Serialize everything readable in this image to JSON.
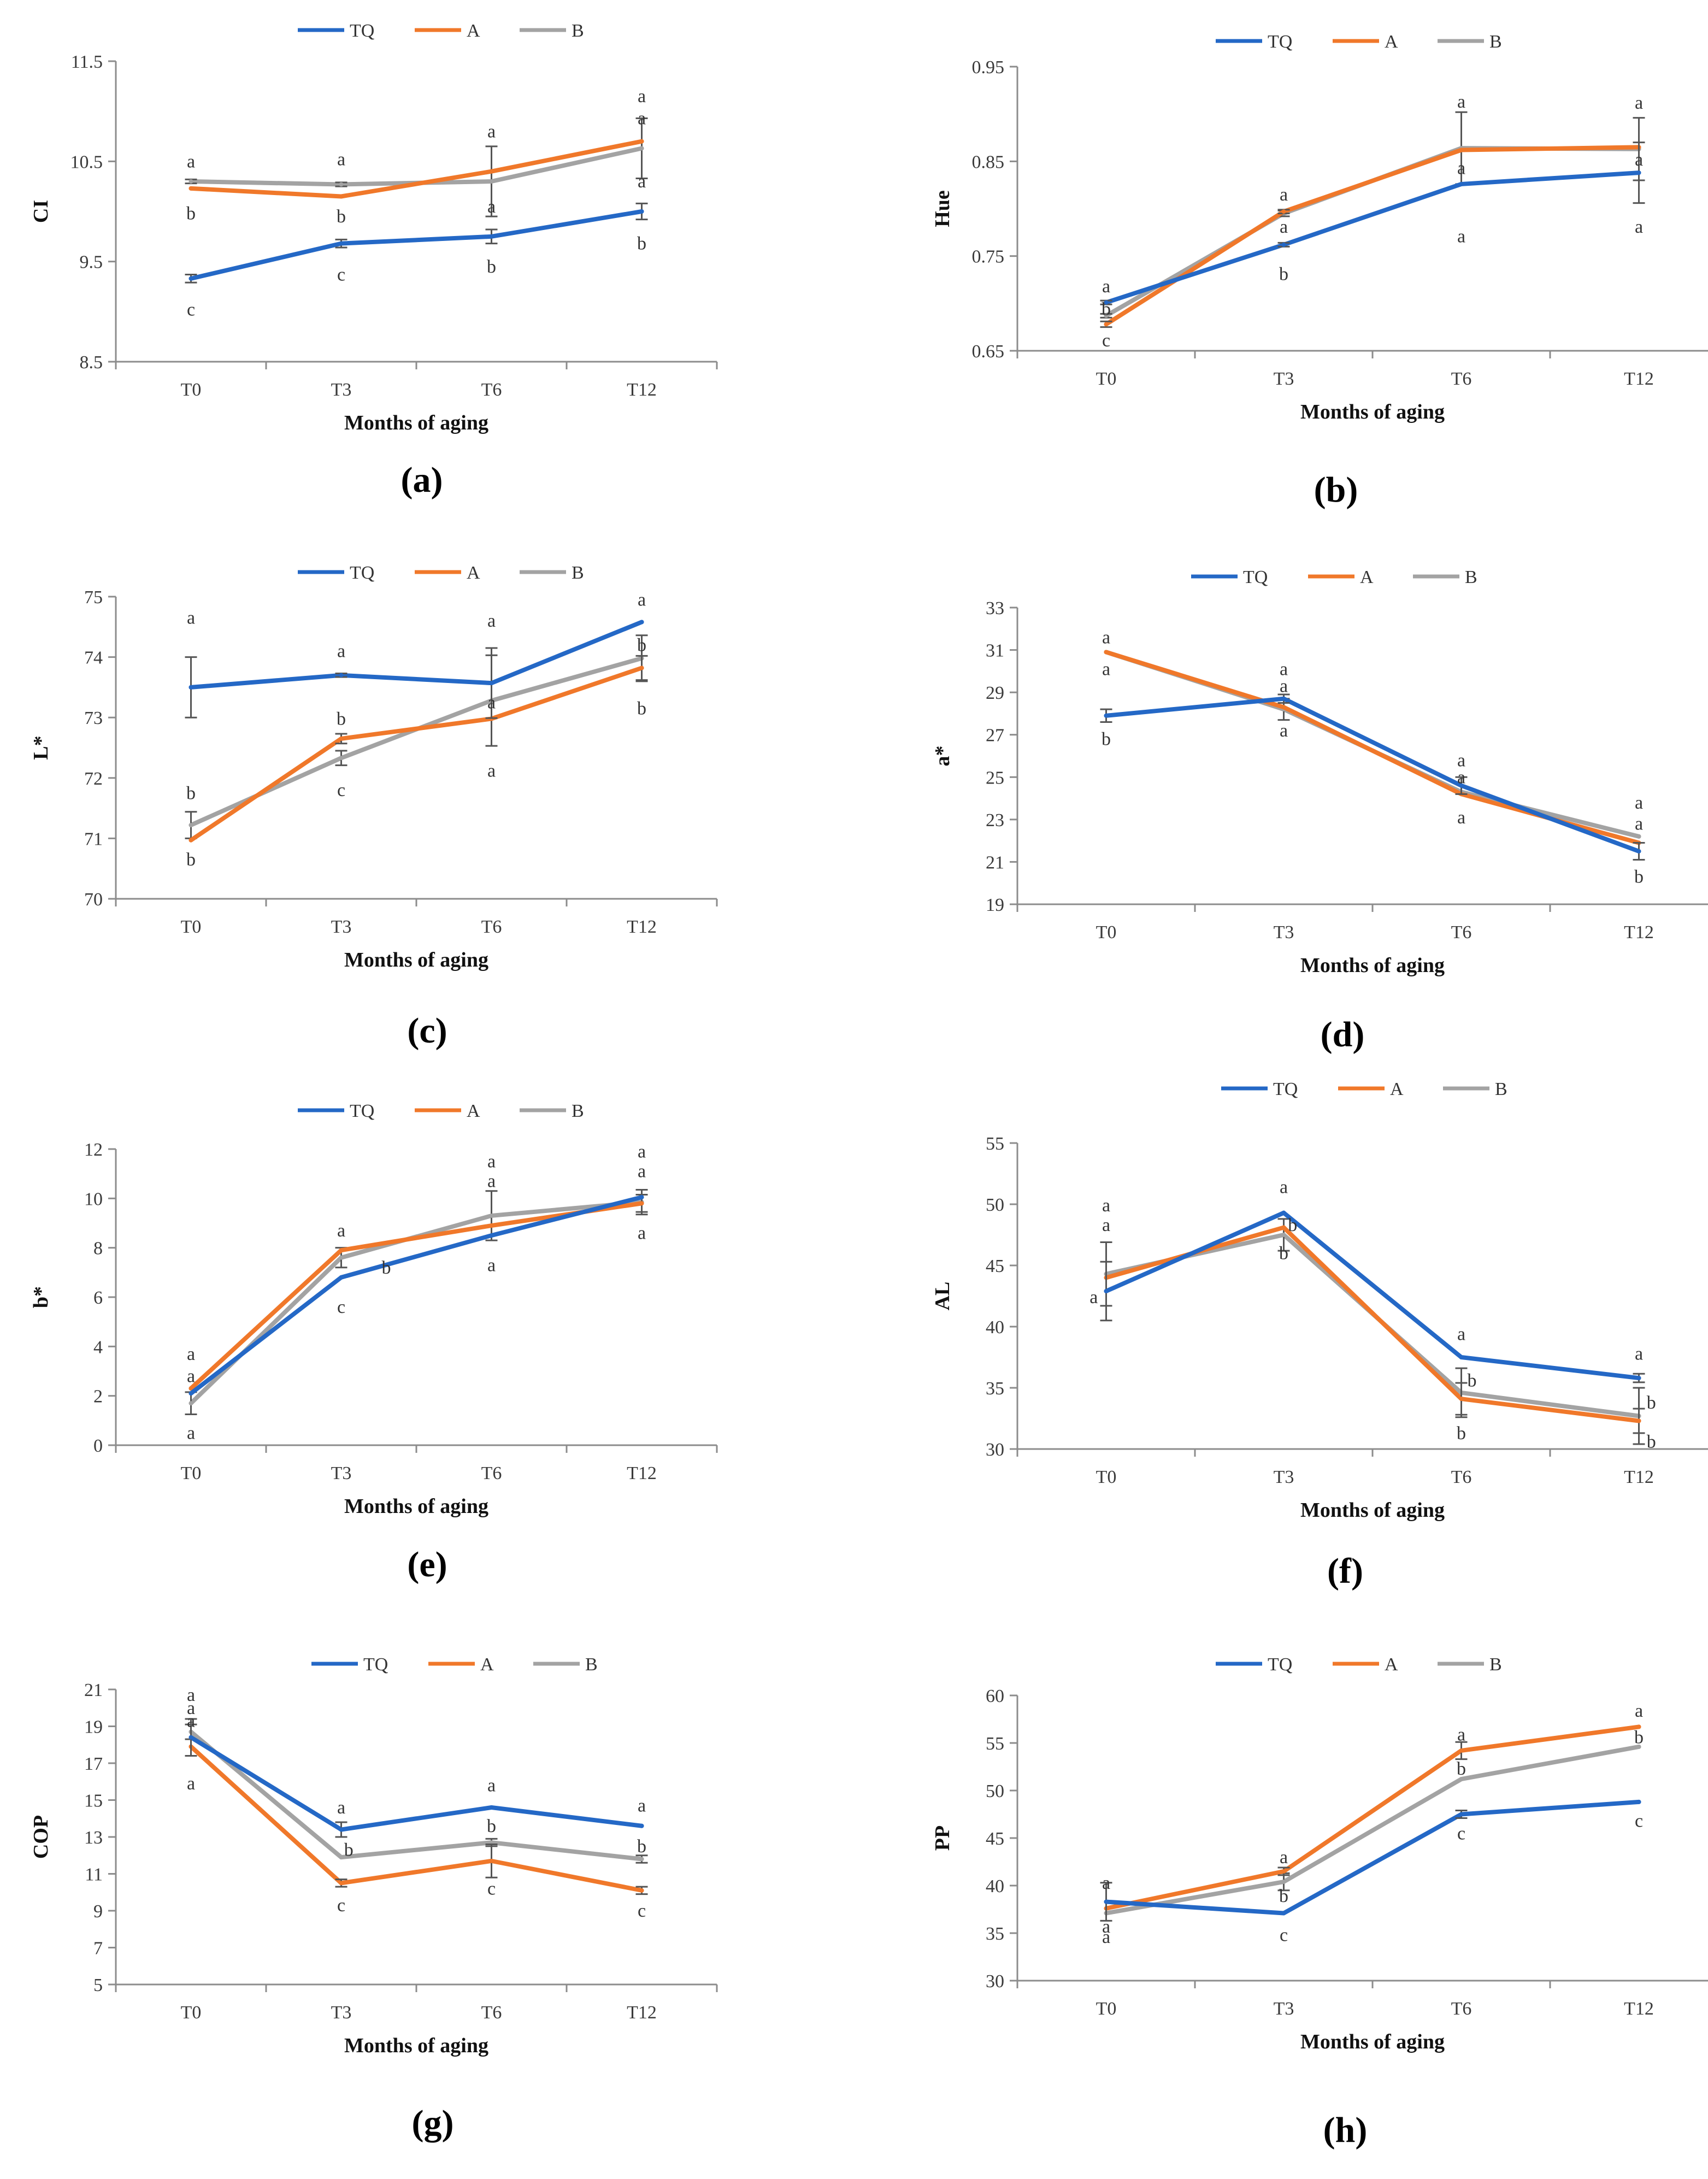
{
  "colors": {
    "TQ": "#2468c6",
    "A": "#f0782a",
    "B": "#a3a3a3",
    "axis": "#8c8c8c"
  },
  "legend": [
    "TQ",
    "A",
    "B"
  ],
  "chart_data": [
    {
      "id": "a",
      "panel_label": "(a)",
      "type": "line",
      "title": "",
      "ylabel": "CI",
      "xlabel": "Months of aging",
      "categories": [
        "T0",
        "T3",
        "T6",
        "T12"
      ],
      "ylim": [
        8.5,
        11.5
      ],
      "yticks": [
        8.5,
        9.5,
        10.5,
        11.5
      ],
      "ytick_labels": [
        "8.5",
        "9.5",
        "10.5",
        "11.5"
      ],
      "series": [
        {
          "name": "TQ",
          "values": [
            9.33,
            9.68,
            9.75,
            10.0
          ],
          "errors": [
            0.04,
            0.04,
            0.07,
            0.08
          ]
        },
        {
          "name": "A",
          "values": [
            10.23,
            10.15,
            10.4,
            10.7
          ],
          "errors": [
            0,
            0,
            0,
            0
          ]
        },
        {
          "name": "B",
          "values": [
            10.3,
            10.27,
            10.3,
            10.63
          ],
          "errors": [
            0.02,
            0.02,
            0.35,
            0.3
          ]
        }
      ],
      "annotations": [
        {
          "cat": 0,
          "value": 10.5,
          "text": "a"
        },
        {
          "cat": 0,
          "value": 9.98,
          "text": "b"
        },
        {
          "cat": 0,
          "value": 9.02,
          "text": "c"
        },
        {
          "cat": 1,
          "value": 10.52,
          "text": "a"
        },
        {
          "cat": 1,
          "value": 9.95,
          "text": "b"
        },
        {
          "cat": 1,
          "value": 9.37,
          "text": "c"
        },
        {
          "cat": 2,
          "value": 10.8,
          "text": "a"
        },
        {
          "cat": 2,
          "value": 10.05,
          "text": "a"
        },
        {
          "cat": 2,
          "value": 9.45,
          "text": "b"
        },
        {
          "cat": 3,
          "value": 11.15,
          "text": "a"
        },
        {
          "cat": 3,
          "value": 10.93,
          "text": "a"
        },
        {
          "cat": 3,
          "value": 10.3,
          "text": "a"
        },
        {
          "cat": 3,
          "value": 9.68,
          "text": "b"
        }
      ]
    },
    {
      "id": "b",
      "panel_label": "(b)",
      "type": "line",
      "title": "",
      "ylabel": "Hue",
      "xlabel": "Months of aging",
      "categories": [
        "T0",
        "T3",
        "T6",
        "T12"
      ],
      "ylim": [
        0.65,
        0.95
      ],
      "yticks": [
        0.65,
        0.75,
        0.85,
        0.95
      ],
      "ytick_labels": [
        "0.65",
        "0.75",
        "0.85",
        "0.95"
      ],
      "series": [
        {
          "name": "TQ",
          "values": [
            0.701,
            0.762,
            0.826,
            0.838
          ],
          "errors": [
            0.002,
            0.002,
            0,
            0.032
          ]
        },
        {
          "name": "A",
          "values": [
            0.678,
            0.797,
            0.862,
            0.865
          ],
          "errors": [
            0.003,
            0.002,
            0,
            0
          ]
        },
        {
          "name": "B",
          "values": [
            0.687,
            0.795,
            0.864,
            0.863
          ],
          "errors": [
            0.002,
            0.003,
            0.038,
            0.033
          ]
        }
      ],
      "annotations": [
        {
          "cat": 0,
          "value": 0.718,
          "text": "a"
        },
        {
          "cat": 0,
          "value": 0.694,
          "text": "b"
        },
        {
          "cat": 0,
          "value": 0.661,
          "text": "c"
        },
        {
          "cat": 1,
          "value": 0.815,
          "text": "a"
        },
        {
          "cat": 1,
          "value": 0.781,
          "text": "a"
        },
        {
          "cat": 1,
          "value": 0.731,
          "text": "b"
        },
        {
          "cat": 2,
          "value": 0.913,
          "text": "a"
        },
        {
          "cat": 2,
          "value": 0.843,
          "text": "a"
        },
        {
          "cat": 2,
          "value": 0.771,
          "text": "a"
        },
        {
          "cat": 3,
          "value": 0.912,
          "text": "a"
        },
        {
          "cat": 3,
          "value": 0.852,
          "text": "a"
        },
        {
          "cat": 3,
          "value": 0.781,
          "text": "a"
        }
      ]
    },
    {
      "id": "c",
      "panel_label": "(c)",
      "type": "line",
      "title": "",
      "ylabel": "L*",
      "xlabel": "Months of aging",
      "categories": [
        "T0",
        "T3",
        "T6",
        "T12"
      ],
      "ylim": [
        70,
        75
      ],
      "yticks": [
        70,
        71,
        72,
        73,
        74,
        75
      ],
      "ytick_labels": [
        "70",
        "71",
        "72",
        "73",
        "74",
        "75"
      ],
      "series": [
        {
          "name": "TQ",
          "values": [
            73.5,
            73.7,
            73.57,
            74.58
          ],
          "errors": [
            0.5,
            0.03,
            0.58,
            0
          ]
        },
        {
          "name": "A",
          "values": [
            70.97,
            72.65,
            72.98,
            73.82
          ],
          "errors": [
            0,
            0.08,
            0,
            0.2
          ]
        },
        {
          "name": "B",
          "values": [
            71.22,
            72.33,
            73.28,
            73.98
          ],
          "errors": [
            0.22,
            0.12,
            0.75,
            0.38
          ]
        }
      ],
      "annotations": [
        {
          "cat": 0,
          "value": 74.65,
          "text": "a"
        },
        {
          "cat": 0,
          "value": 71.75,
          "text": "b"
        },
        {
          "cat": 0,
          "value": 70.65,
          "text": "b"
        },
        {
          "cat": 1,
          "value": 74.1,
          "text": "a"
        },
        {
          "cat": 1,
          "value": 72.98,
          "text": "b"
        },
        {
          "cat": 1,
          "value": 71.8,
          "text": "c"
        },
        {
          "cat": 2,
          "value": 74.6,
          "text": "a"
        },
        {
          "cat": 2,
          "value": 73.25,
          "text": "a"
        },
        {
          "cat": 2,
          "value": 72.12,
          "text": "a"
        },
        {
          "cat": 3,
          "value": 74.95,
          "text": "a"
        },
        {
          "cat": 3,
          "value": 74.2,
          "text": "b"
        },
        {
          "cat": 3,
          "value": 73.15,
          "text": "b"
        }
      ]
    },
    {
      "id": "d",
      "panel_label": "(d)",
      "type": "line",
      "title": "",
      "ylabel": "a*",
      "xlabel": "Months of aging",
      "categories": [
        "T0",
        "T3",
        "T6",
        "T12"
      ],
      "ylim": [
        19,
        33
      ],
      "yticks": [
        19,
        21,
        23,
        25,
        27,
        29,
        31,
        33
      ],
      "ytick_labels": [
        "19",
        "21",
        "23",
        "25",
        "27",
        "29",
        "31",
        "33"
      ],
      "series": [
        {
          "name": "TQ",
          "values": [
            27.9,
            28.7,
            24.6,
            21.5
          ],
          "errors": [
            0.3,
            0.2,
            0.4,
            0.4
          ]
        },
        {
          "name": "A",
          "values": [
            30.9,
            28.3,
            24.2,
            21.9
          ],
          "errors": [
            0,
            0,
            0,
            0
          ]
        },
        {
          "name": "B",
          "values": [
            30.9,
            28.2,
            24.3,
            22.2
          ],
          "errors": [
            0,
            0.5,
            0,
            0
          ]
        }
      ],
      "annotations": [
        {
          "cat": 0,
          "value": 31.6,
          "text": "a"
        },
        {
          "cat": 0,
          "value": 30.1,
          "text": "a"
        },
        {
          "cat": 0,
          "value": 26.8,
          "text": "b"
        },
        {
          "cat": 1,
          "value": 30.1,
          "text": "a"
        },
        {
          "cat": 1,
          "value": 29.3,
          "text": "a"
        },
        {
          "cat": 1,
          "value": 27.2,
          "text": "a"
        },
        {
          "cat": 2,
          "value": 25.8,
          "text": "a"
        },
        {
          "cat": 2,
          "value": 25.0,
          "text": "a"
        },
        {
          "cat": 2,
          "value": 23.1,
          "text": "a"
        },
        {
          "cat": 3,
          "value": 23.8,
          "text": "a"
        },
        {
          "cat": 3,
          "value": 22.8,
          "text": "a"
        },
        {
          "cat": 3,
          "value": 20.3,
          "text": "b"
        }
      ]
    },
    {
      "id": "e",
      "panel_label": "(e)",
      "type": "line",
      "title": "",
      "ylabel": "b*",
      "xlabel": "Months of aging",
      "categories": [
        "T0",
        "T3",
        "T6",
        "T12"
      ],
      "ylim": [
        0,
        12
      ],
      "yticks": [
        0,
        2,
        4,
        6,
        8,
        10,
        12
      ],
      "ytick_labels": [
        "0",
        "2",
        "4",
        "6",
        "8",
        "10",
        "12"
      ],
      "series": [
        {
          "name": "TQ",
          "values": [
            2.1,
            6.8,
            8.5,
            10.05
          ],
          "errors": [
            0,
            0,
            0,
            0
          ]
        },
        {
          "name": "A",
          "values": [
            2.3,
            7.9,
            8.9,
            9.8
          ],
          "errors": [
            0,
            0,
            0,
            0.35
          ]
        },
        {
          "name": "B",
          "values": [
            1.7,
            7.6,
            9.3,
            9.85
          ],
          "errors": [
            0.45,
            0.4,
            1.0,
            0.5
          ]
        }
      ],
      "annotations": [
        {
          "cat": 0,
          "value": 3.7,
          "text": "a"
        },
        {
          "cat": 0,
          "value": 2.8,
          "text": "a"
        },
        {
          "cat": 0,
          "value": 0.5,
          "text": "a"
        },
        {
          "cat": 1,
          "value": 8.7,
          "text": "a"
        },
        {
          "cat": 1,
          "value": 7.2,
          "text": "b",
          "dx": 0.3
        },
        {
          "cat": 1,
          "value": 5.6,
          "text": "c"
        },
        {
          "cat": 2,
          "value": 11.5,
          "text": "a"
        },
        {
          "cat": 2,
          "value": 10.7,
          "text": "a"
        },
        {
          "cat": 2,
          "value": 7.3,
          "text": "a"
        },
        {
          "cat": 3,
          "value": 11.9,
          "text": "a"
        },
        {
          "cat": 3,
          "value": 11.1,
          "text": "a"
        },
        {
          "cat": 3,
          "value": 8.6,
          "text": "a"
        }
      ]
    },
    {
      "id": "f",
      "panel_label": "(f)",
      "type": "line",
      "title": "",
      "ylabel": "AL",
      "xlabel": "Months of aging",
      "categories": [
        "T0",
        "T3",
        "T6",
        "T12"
      ],
      "ylim": [
        30,
        55
      ],
      "yticks": [
        30,
        35,
        40,
        45,
        50,
        55
      ],
      "ytick_labels": [
        "30",
        "35",
        "40",
        "45",
        "50",
        "55"
      ],
      "series": [
        {
          "name": "TQ",
          "values": [
            42.9,
            49.3,
            37.5,
            35.8
          ],
          "errors": [
            2.4,
            0,
            0,
            0.35
          ]
        },
        {
          "name": "A",
          "values": [
            44.0,
            48.1,
            34.1,
            32.3
          ],
          "errors": [
            0,
            0,
            1.3,
            1.0
          ]
        },
        {
          "name": "B",
          "values": [
            44.3,
            47.5,
            34.6,
            32.7
          ],
          "errors": [
            2.6,
            1.3,
            2.0,
            2.3
          ]
        }
      ],
      "annotations": [
        {
          "cat": 0,
          "value": 49.9,
          "text": "a"
        },
        {
          "cat": 0,
          "value": 48.3,
          "text": "a"
        },
        {
          "cat": 0,
          "value": 42.4,
          "text": "a",
          "dx": -0.07
        },
        {
          "cat": 1,
          "value": 51.4,
          "text": "a"
        },
        {
          "cat": 1,
          "value": 48.3,
          "text": "b",
          "dx": 0.05
        },
        {
          "cat": 1,
          "value": 46.0,
          "text": "b"
        },
        {
          "cat": 2,
          "value": 39.4,
          "text": "a"
        },
        {
          "cat": 2,
          "value": 35.6,
          "text": "b",
          "dx": 0.06
        },
        {
          "cat": 2,
          "value": 31.3,
          "text": "b"
        },
        {
          "cat": 3,
          "value": 37.8,
          "text": "a"
        },
        {
          "cat": 3,
          "value": 33.8,
          "text": "b",
          "dx": 0.07
        },
        {
          "cat": 3,
          "value": 30.6,
          "text": "b",
          "dx": 0.07
        }
      ]
    },
    {
      "id": "g",
      "panel_label": "(g)",
      "type": "line",
      "title": "",
      "ylabel": "COP",
      "xlabel": "Months of aging",
      "categories": [
        "T0",
        "T3",
        "T6",
        "T12"
      ],
      "ylim": [
        5,
        21
      ],
      "yticks": [
        5,
        7,
        9,
        11,
        13,
        15,
        17,
        19,
        21
      ],
      "ytick_labels": [
        "5",
        "7",
        "9",
        "11",
        "13",
        "15",
        "17",
        "19",
        "21"
      ],
      "series": [
        {
          "name": "TQ",
          "values": [
            18.4,
            13.4,
            14.6,
            13.6
          ],
          "errors": [
            1.0,
            0.4,
            0,
            0
          ]
        },
        {
          "name": "A",
          "values": [
            17.9,
            10.5,
            11.7,
            10.1
          ],
          "errors": [
            0,
            0.2,
            0.9,
            0.2
          ]
        },
        {
          "name": "B",
          "values": [
            18.7,
            11.9,
            12.7,
            11.8
          ],
          "errors": [
            0.4,
            0,
            0.2,
            0.2
          ]
        }
      ],
      "annotations": [
        {
          "cat": 0,
          "value": 20.7,
          "text": "a"
        },
        {
          "cat": 0,
          "value": 20.0,
          "text": "a"
        },
        {
          "cat": 0,
          "value": 19.3,
          "text": "a"
        },
        {
          "cat": 0,
          "value": 15.9,
          "text": "a"
        },
        {
          "cat": 1,
          "value": 14.6,
          "text": "a"
        },
        {
          "cat": 1,
          "value": 12.3,
          "text": "b",
          "dx": 0.05
        },
        {
          "cat": 1,
          "value": 9.3,
          "text": "c"
        },
        {
          "cat": 2,
          "value": 15.8,
          "text": "a"
        },
        {
          "cat": 2,
          "value": 13.6,
          "text": "b"
        },
        {
          "cat": 2,
          "value": 10.2,
          "text": "c"
        },
        {
          "cat": 3,
          "value": 14.7,
          "text": "a"
        },
        {
          "cat": 3,
          "value": 12.5,
          "text": "b"
        },
        {
          "cat": 3,
          "value": 9.0,
          "text": "c"
        }
      ]
    },
    {
      "id": "h",
      "panel_label": "(h)",
      "type": "line",
      "title": "",
      "ylabel": "PP",
      "xlabel": "Months of aging",
      "categories": [
        "T0",
        "T3",
        "T6",
        "T12"
      ],
      "ylim": [
        30,
        60
      ],
      "yticks": [
        30,
        35,
        40,
        45,
        50,
        55,
        60
      ],
      "ytick_labels": [
        "30",
        "35",
        "40",
        "45",
        "50",
        "55",
        "60"
      ],
      "series": [
        {
          "name": "TQ",
          "values": [
            38.3,
            37.1,
            47.5,
            48.8
          ],
          "errors": [
            2.0,
            0,
            0.4,
            0
          ]
        },
        {
          "name": "A",
          "values": [
            37.6,
            41.5,
            54.2,
            56.7
          ],
          "errors": [
            0,
            0.4,
            0.9,
            0
          ]
        },
        {
          "name": "B",
          "values": [
            37.1,
            40.4,
            51.2,
            54.6
          ],
          "errors": [
            0,
            0.9,
            0,
            0
          ]
        }
      ],
      "annotations": [
        {
          "cat": 0,
          "value": 40.3,
          "text": "a"
        },
        {
          "cat": 0,
          "value": 35.7,
          "text": "a"
        },
        {
          "cat": 0,
          "value": 34.6,
          "text": "a"
        },
        {
          "cat": 1,
          "value": 43.0,
          "text": "a"
        },
        {
          "cat": 1,
          "value": 38.9,
          "text": "b"
        },
        {
          "cat": 1,
          "value": 34.8,
          "text": "c"
        },
        {
          "cat": 2,
          "value": 55.9,
          "text": "a"
        },
        {
          "cat": 2,
          "value": 52.3,
          "text": "b"
        },
        {
          "cat": 2,
          "value": 45.5,
          "text": "c"
        },
        {
          "cat": 3,
          "value": 58.4,
          "text": "a"
        },
        {
          "cat": 3,
          "value": 55.6,
          "text": "b"
        },
        {
          "cat": 3,
          "value": 46.8,
          "text": "c"
        }
      ]
    }
  ]
}
